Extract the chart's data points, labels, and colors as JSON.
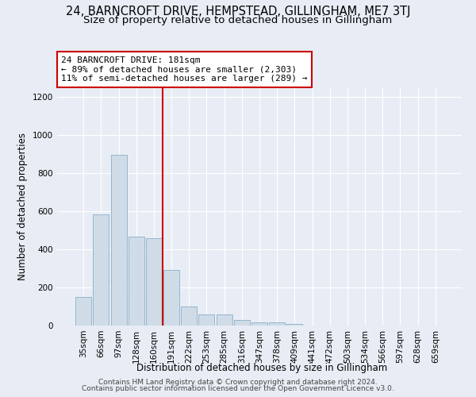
{
  "title": "24, BARNCROFT DRIVE, HEMPSTEAD, GILLINGHAM, ME7 3TJ",
  "subtitle": "Size of property relative to detached houses in Gillingham",
  "xlabel": "Distribution of detached houses by size in Gillingham",
  "ylabel": "Number of detached properties",
  "categories": [
    "35sqm",
    "66sqm",
    "97sqm",
    "128sqm",
    "160sqm",
    "191sqm",
    "222sqm",
    "253sqm",
    "285sqm",
    "316sqm",
    "347sqm",
    "378sqm",
    "409sqm",
    "441sqm",
    "472sqm",
    "503sqm",
    "534sqm",
    "566sqm",
    "597sqm",
    "628sqm",
    "659sqm"
  ],
  "values": [
    150,
    585,
    895,
    465,
    460,
    290,
    100,
    60,
    60,
    28,
    18,
    15,
    10,
    0,
    0,
    0,
    0,
    0,
    0,
    0,
    0
  ],
  "bar_color": "#cfdce8",
  "bar_edge_color": "#8aaec8",
  "vline_color": "#cc0000",
  "annotation_text": "24 BARNCROFT DRIVE: 181sqm\n← 89% of detached houses are smaller (2,303)\n11% of semi-detached houses are larger (289) →",
  "annotation_box_facecolor": "#ffffff",
  "annotation_box_edgecolor": "#cc0000",
  "ylim": [
    0,
    1250
  ],
  "yticks": [
    0,
    200,
    400,
    600,
    800,
    1000,
    1200
  ],
  "bg_color": "#e8edf5",
  "plot_bg_color": "#e8edf5",
  "grid_color": "#ffffff",
  "footer_line1": "Contains HM Land Registry data © Crown copyright and database right 2024.",
  "footer_line2": "Contains public sector information licensed under the Open Government Licence v3.0.",
  "title_fontsize": 10.5,
  "subtitle_fontsize": 9.5,
  "xlabel_fontsize": 8.5,
  "ylabel_fontsize": 8.5,
  "tick_fontsize": 7.5,
  "footer_fontsize": 6.5
}
